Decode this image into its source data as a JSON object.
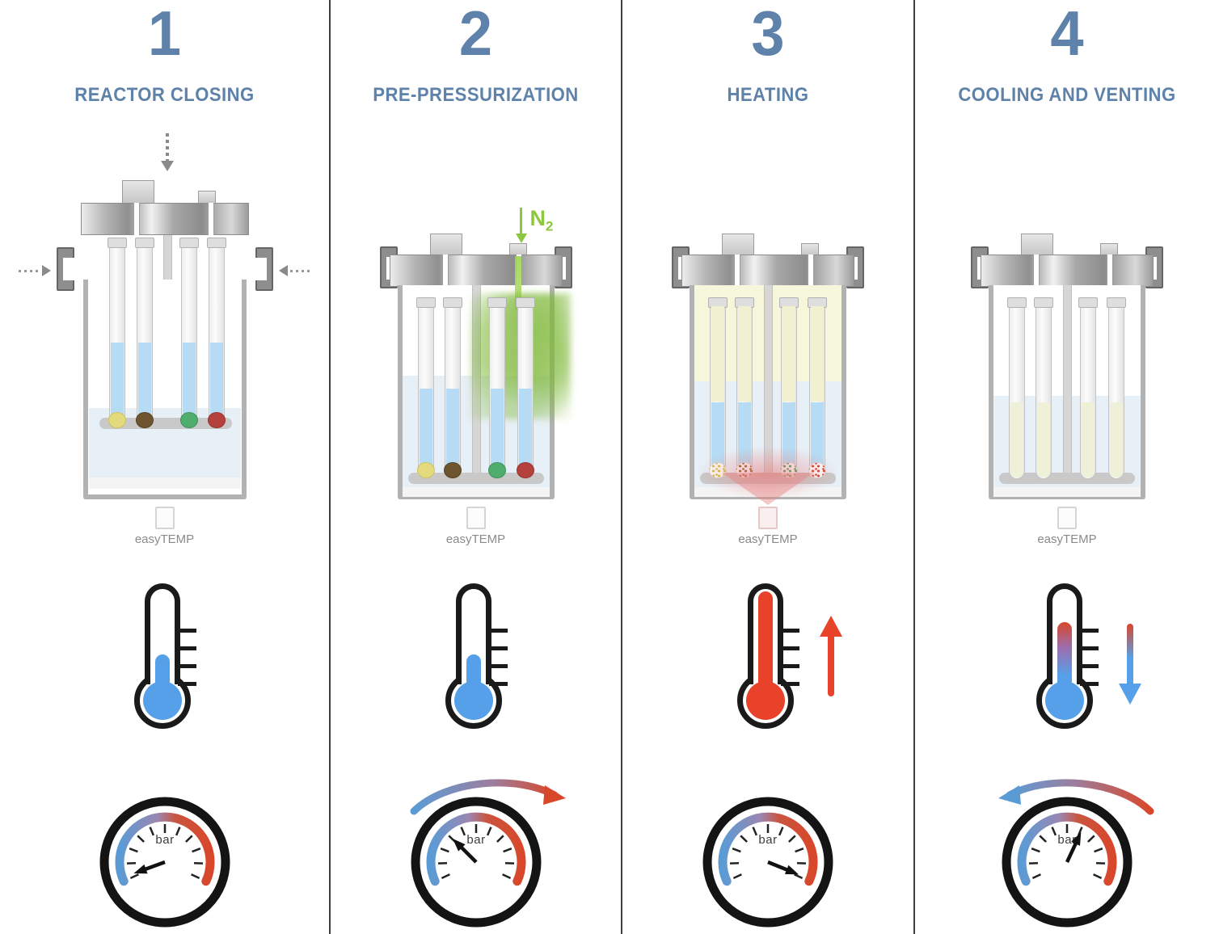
{
  "colors": {
    "accent_blue": "#5e82a9",
    "divider": "#3f3f3f",
    "n2_green": "#8dc63f",
    "thermo_blue": "#55a0e8",
    "thermo_red": "#e8432a",
    "gauge_blue": "#5b9bd5",
    "gauge_red": "#d9472b",
    "tube_liquid_blue": "#b5dcf4",
    "tube_liquid_product": "#eef0d8"
  },
  "samples": [
    "yellow",
    "brown",
    "green",
    "red"
  ],
  "panels": [
    {
      "number": "1",
      "title": "REACTOR CLOSING",
      "device_label": "easyTEMP",
      "reactor_state": "open-lid-lowering",
      "thermometer": {
        "state": "cold-low",
        "trend": "none"
      },
      "gauge": {
        "label": "bar",
        "needle_angle_deg": 160,
        "trend": "none"
      }
    },
    {
      "number": "2",
      "title": "PRE-PRESSURIZATION",
      "device_label": "easyTEMP",
      "n2": {
        "label": "N",
        "sub": "2"
      },
      "reactor_state": "closed-nitrogen-inlet",
      "thermometer": {
        "state": "cold-low",
        "trend": "none"
      },
      "gauge": {
        "label": "bar",
        "needle_angle_deg": -135,
        "trend": "increase"
      }
    },
    {
      "number": "3",
      "title": "HEATING",
      "device_label": "easyTEMP",
      "reactor_state": "closed-heating",
      "thermometer": {
        "state": "hot-high",
        "trend": "up"
      },
      "gauge": {
        "label": "bar",
        "needle_angle_deg": 22,
        "trend": "none"
      }
    },
    {
      "number": "4",
      "title": "COOLING AND VENTING",
      "device_label": "easyTEMP",
      "reactor_state": "closed-cooled-product",
      "thermometer": {
        "state": "cooling-mid",
        "trend": "down"
      },
      "gauge": {
        "label": "bar",
        "needle_angle_deg": -65,
        "trend": "decrease"
      }
    }
  ]
}
